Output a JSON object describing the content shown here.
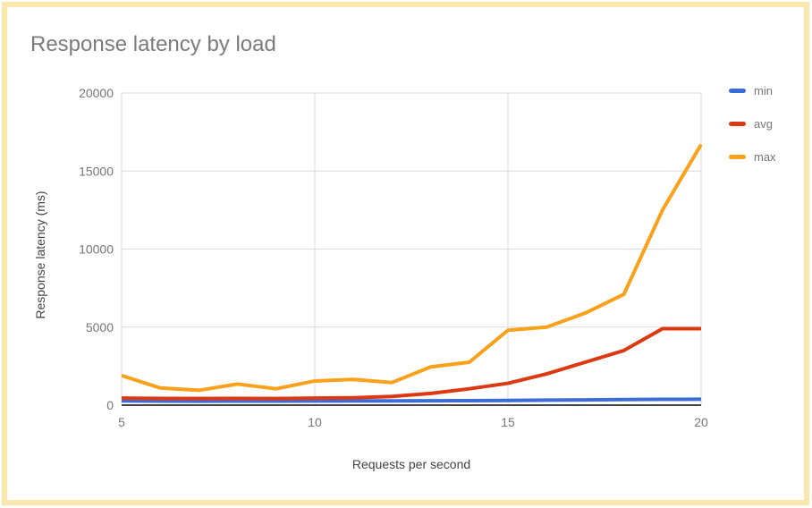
{
  "page": {
    "frame_color": "#F9E7AC",
    "background_color": "#FFFFFF",
    "text_muted_color": "#757575",
    "axis_title_color": "#424242",
    "gridline_color": "#DADADA",
    "baseline_color": "#424242"
  },
  "chart_data": {
    "type": "line",
    "title": "Response latency by load",
    "xlabel": "Requests per second",
    "ylabel": "Response latency (ms)",
    "xlim": [
      5,
      20
    ],
    "ylim": [
      0,
      20000
    ],
    "xticks": [
      5,
      10,
      15,
      20
    ],
    "yticks": [
      0,
      5000,
      10000,
      15000,
      20000
    ],
    "grid": true,
    "legend_position": "right",
    "x": [
      5,
      6,
      7,
      8,
      9,
      10,
      11,
      12,
      13,
      14,
      15,
      16,
      17,
      18,
      19,
      20
    ],
    "series": [
      {
        "name": "min",
        "color": "#3C6CD8",
        "values": [
          270,
          255,
          250,
          260,
          255,
          265,
          270,
          275,
          280,
          290,
          300,
          320,
          340,
          360,
          370,
          380
        ]
      },
      {
        "name": "avg",
        "color": "#DC3912",
        "values": [
          450,
          430,
          420,
          430,
          420,
          450,
          470,
          560,
          750,
          1050,
          1400,
          2000,
          2750,
          3500,
          4900,
          4900
        ]
      },
      {
        "name": "max",
        "color": "#F9A11B",
        "values": [
          1900,
          1100,
          950,
          1350,
          1050,
          1550,
          1650,
          1450,
          2450,
          2750,
          4800,
          5000,
          5900,
          7100,
          12500,
          16700
        ]
      }
    ]
  }
}
